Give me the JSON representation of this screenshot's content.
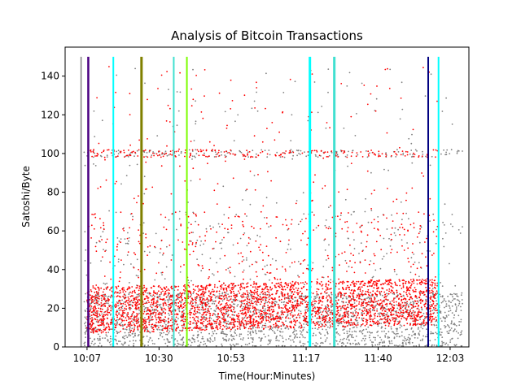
{
  "chart_data": {
    "type": "scatter",
    "title": "Analysis of Bitcoin Transactions",
    "xlabel": "Time(Hour:Minutes)",
    "ylabel": "Satoshi/Byte",
    "x_unit": "minutes",
    "xlim": [
      600,
      729
    ],
    "ylim": [
      0,
      155
    ],
    "x_ticks": [
      {
        "value": 607,
        "label": "10:07"
      },
      {
        "value": 630,
        "label": "10:30"
      },
      {
        "value": 653,
        "label": "10:53"
      },
      {
        "value": 677,
        "label": "11:17"
      },
      {
        "value": 700,
        "label": "11:40"
      },
      {
        "value": 723,
        "label": "12:03"
      }
    ],
    "y_ticks": [
      0,
      20,
      40,
      60,
      80,
      100,
      120,
      140
    ],
    "grid": false,
    "legend": "none",
    "scatter_series": [
      {
        "color": "#808080",
        "x_range": [
          606,
          727
        ],
        "y_center": 14,
        "y_spread": 14,
        "density": "dense"
      },
      {
        "color": "#ff0000",
        "x_range": [
          607,
          719
        ],
        "y_center": 19,
        "y_spread": 12,
        "density": "dense"
      }
    ],
    "vertical_lines": [
      {
        "x": 605.1,
        "color": "#808080",
        "width": 1.5
      },
      {
        "x": 607.4,
        "color": "#4b0082",
        "width": 2.5
      },
      {
        "x": 615.4,
        "color": "#00ffff",
        "width": 2
      },
      {
        "x": 624.4,
        "color": "#808000",
        "width": 3
      },
      {
        "x": 634.7,
        "color": "#40e0d0",
        "width": 2
      },
      {
        "x": 638.9,
        "color": "#7cfc00",
        "width": 2
      },
      {
        "x": 678.2,
        "color": "#00ffff",
        "width": 3
      },
      {
        "x": 686.0,
        "color": "#40e0d0",
        "width": 3
      },
      {
        "x": 716.0,
        "color": "#000080",
        "width": 2
      },
      {
        "x": 719.3,
        "color": "#00ffff",
        "width": 2
      }
    ]
  }
}
